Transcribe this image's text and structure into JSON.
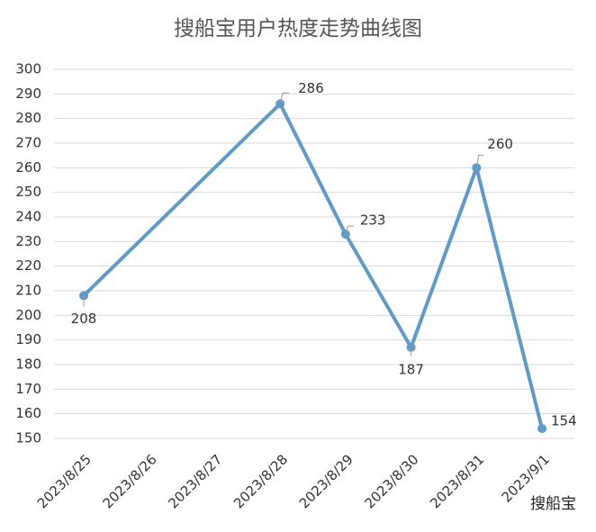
{
  "chart_data": {
    "type": "line",
    "title": "搜船宝用户热度走势曲线图",
    "x": [
      "2023/8/25",
      "2023/8/28",
      "2023/8/29",
      "2023/8/30",
      "2023/8/31",
      "2023/9/1"
    ],
    "xticks": [
      "2023/8/25",
      "2023/8/26",
      "2023/8/27",
      "2023/8/28",
      "2023/8/29",
      "2023/8/30",
      "2023/8/31",
      "2023/9/1"
    ],
    "series": [
      {
        "color": "#5f9bc9",
        "values": [
          208,
          286,
          233,
          187,
          260,
          154
        ]
      }
    ],
    "ylim": [
      150,
      300
    ],
    "yticks": [
      150,
      160,
      170,
      180,
      190,
      200,
      210,
      220,
      230,
      240,
      250,
      260,
      270,
      280,
      290,
      300
    ],
    "grid": true,
    "watermark": "搜船宝"
  }
}
